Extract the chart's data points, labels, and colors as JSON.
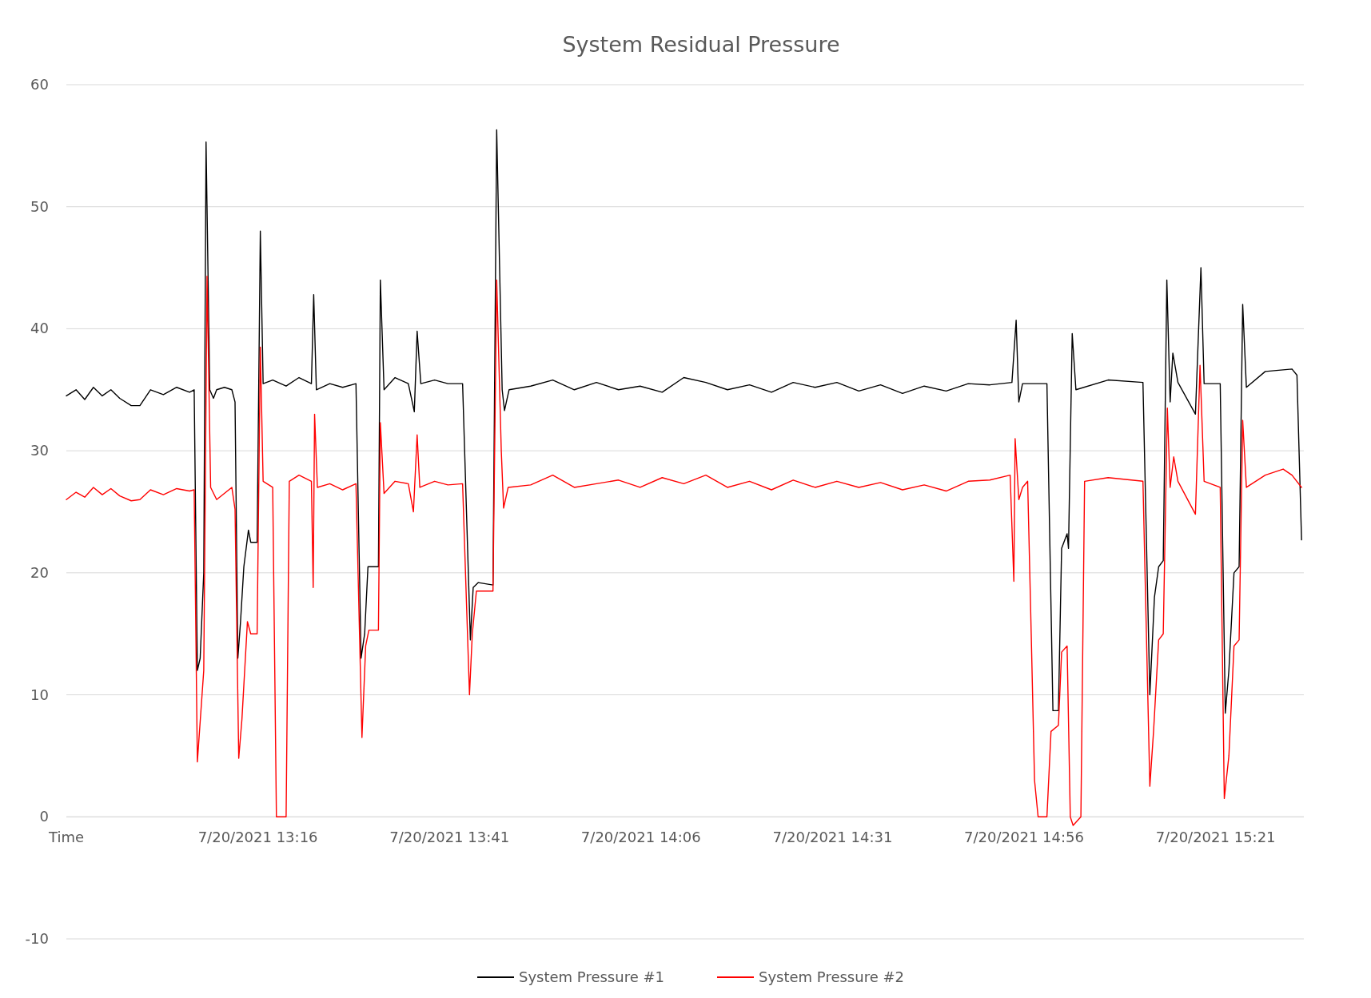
{
  "chart_data": {
    "type": "line",
    "title": "System Residual Pressure",
    "xlim": [
      "2021-07-20T12:51",
      "2021-07-20T15:32:31"
    ],
    "xticks": [
      {
        "value": "2021-07-20T12:51",
        "label": "Time"
      },
      {
        "value": "2021-07-20T13:16",
        "label": "7/20/2021 13:16"
      },
      {
        "value": "2021-07-20T13:41",
        "label": "7/20/2021 13:41"
      },
      {
        "value": "2021-07-20T14:06",
        "label": "7/20/2021 14:06"
      },
      {
        "value": "2021-07-20T14:31",
        "label": "7/20/2021 14:31"
      },
      {
        "value": "2021-07-20T14:56",
        "label": "7/20/2021 14:56"
      },
      {
        "value": "2021-07-20T15:21",
        "label": "7/20/2021 15:21"
      }
    ],
    "ylim": [
      -10,
      60
    ],
    "yticks": [
      -10,
      0,
      10,
      20,
      30,
      40,
      50,
      60
    ],
    "grid": "y",
    "legend": "bottom",
    "marker": "none",
    "line_style": "solid",
    "series": [
      {
        "name": "System Pressure #1",
        "color": "#000000",
        "x": [
          "2021-07-20T12:51:00",
          "2021-07-20T12:52:16",
          "2021-07-20T12:53:24",
          "2021-07-20T12:54:32",
          "2021-07-20T12:55:41",
          "2021-07-20T12:56:49",
          "2021-07-20T12:57:58",
          "2021-07-20T12:59:28",
          "2021-07-20T13:00:36",
          "2021-07-20T13:01:59",
          "2021-07-20T13:03:40",
          "2021-07-20T13:05:24",
          "2021-07-20T13:07:05",
          "2021-07-20T13:07:41",
          "2021-07-20T13:08:06",
          "2021-07-20T13:08:28",
          "2021-07-20T13:08:56",
          "2021-07-20T13:09:14",
          "2021-07-20T13:09:43",
          "2021-07-20T13:10:12",
          "2021-07-20T13:10:37",
          "2021-07-20T13:11:38",
          "2021-07-20T13:12:36",
          "2021-07-20T13:13:01",
          "2021-07-20T13:13:23",
          "2021-07-20T13:13:44",
          "2021-07-20T13:14:10",
          "2021-07-20T13:14:46",
          "2021-07-20T13:15:04",
          "2021-07-20T13:15:54",
          "2021-07-20T13:16:19",
          "2021-07-20T13:16:41",
          "2021-07-20T13:17:56",
          "2021-07-20T13:19:41",
          "2021-07-20T13:21:22",
          "2021-07-20T13:22:59",
          "2021-07-20T13:23:17",
          "2021-07-20T13:23:38",
          "2021-07-20T13:25:23",
          "2021-07-20T13:27:04",
          "2021-07-20T13:28:48",
          "2021-07-20T13:29:28",
          "2021-07-20T13:29:56",
          "2021-07-20T13:30:22",
          "2021-07-20T13:31:44",
          "2021-07-20T13:31:59",
          "2021-07-20T13:32:28",
          "2021-07-20T13:33:54",
          "2021-07-20T13:35:38",
          "2021-07-20T13:36:25",
          "2021-07-20T13:36:47",
          "2021-07-20T13:37:16",
          "2021-07-20T13:39:04",
          "2021-07-20T13:40:48",
          "2021-07-20T13:42:43",
          "2021-07-20T13:43:44",
          "2021-07-20T13:44:06",
          "2021-07-20T13:44:46",
          "2021-07-20T13:46:41",
          "2021-07-20T13:47:10",
          "2021-07-20T13:47:53",
          "2021-07-20T13:48:11",
          "2021-07-20T13:48:47",
          "2021-07-20T13:51:36",
          "2021-07-20T13:54:29",
          "2021-07-20T13:57:18",
          "2021-07-20T14:00:11",
          "2021-07-20T14:03:04",
          "2021-07-20T14:05:53",
          "2021-07-20T14:08:46",
          "2021-07-20T14:11:35",
          "2021-07-20T14:14:28",
          "2021-07-20T14:17:17",
          "2021-07-20T14:20:10",
          "2021-07-20T14:23:02",
          "2021-07-20T14:25:52",
          "2021-07-20T14:28:44",
          "2021-07-20T14:31:34",
          "2021-07-20T14:34:26",
          "2021-07-20T14:37:16",
          "2021-07-20T14:40:08",
          "2021-07-20T14:42:58",
          "2021-07-20T14:45:50",
          "2021-07-20T14:48:43",
          "2021-07-20T14:51:32",
          "2021-07-20T14:54:25",
          "2021-07-20T14:54:58",
          "2021-07-20T14:55:19",
          "2021-07-20T14:55:48",
          "2021-07-20T14:58:59",
          "2021-07-20T14:59:46",
          "2021-07-20T15:00:29",
          "2021-07-20T15:00:54",
          "2021-07-20T15:01:37",
          "2021-07-20T15:01:48",
          "2021-07-20T15:02:17",
          "2021-07-20T15:02:46",
          "2021-07-20T15:06:58",
          "2021-07-20T15:11:31",
          "2021-07-20T15:12:25",
          "2021-07-20T15:13:01",
          "2021-07-20T15:13:34",
          "2021-07-20T15:14:10",
          "2021-07-20T15:14:38",
          "2021-07-20T15:15:04",
          "2021-07-20T15:15:25",
          "2021-07-20T15:16:05",
          "2021-07-20T15:18:22",
          "2021-07-20T15:19:05",
          "2021-07-20T15:19:30",
          "2021-07-20T15:21:36",
          "2021-07-20T15:22:16",
          "2021-07-20T15:22:44",
          "2021-07-20T15:23:24",
          "2021-07-20T15:24:04",
          "2021-07-20T15:24:32",
          "2021-07-20T15:25:01",
          "2021-07-20T15:27:29",
          "2021-07-20T15:30:58",
          "2021-07-20T15:31:37",
          "2021-07-20T15:32:13"
        ],
        "values": [
          34.5,
          35,
          34.2,
          35.2,
          34.5,
          35,
          34.3,
          33.7,
          33.7,
          35,
          34.6,
          35.2,
          34.8,
          35,
          12,
          13,
          20,
          55.3,
          35,
          34.3,
          35,
          35.2,
          35,
          34,
          13,
          16,
          20.5,
          23.5,
          22.5,
          22.5,
          48,
          35.5,
          35.8,
          35.3,
          36,
          35.5,
          42.8,
          35,
          35.5,
          35.2,
          35.5,
          13,
          15,
          20.5,
          20.5,
          44,
          35,
          36,
          35.5,
          33.2,
          39.8,
          35.5,
          35.8,
          35.5,
          35.5,
          14.5,
          18.8,
          19.2,
          19,
          56.3,
          35,
          33.3,
          35,
          35.3,
          35.8,
          35,
          35.6,
          35,
          35.3,
          34.8,
          36,
          35.6,
          35,
          35.4,
          34.8,
          35.6,
          35.2,
          35.6,
          34.9,
          35.4,
          34.7,
          35.3,
          34.9,
          35.5,
          35.4,
          35.6,
          40.7,
          34,
          35.5,
          35.5,
          8.7,
          8.7,
          22,
          23.2,
          22,
          39.6,
          35,
          35.8,
          35.6,
          10,
          18,
          20.5,
          21,
          44,
          34,
          38,
          35.6,
          33,
          45,
          35.5,
          35.5,
          8.5,
          12,
          20,
          20.5,
          42,
          35.2,
          36.5,
          36.7,
          36.2,
          22.7
        ]
      },
      {
        "name": "System Pressure #2",
        "color": "#ff0000",
        "x": [
          "2021-07-20T12:51:00",
          "2021-07-20T12:52:16",
          "2021-07-20T12:53:24",
          "2021-07-20T12:54:32",
          "2021-07-20T12:55:41",
          "2021-07-20T12:56:49",
          "2021-07-20T12:57:58",
          "2021-07-20T12:59:28",
          "2021-07-20T13:00:36",
          "2021-07-20T13:01:59",
          "2021-07-20T13:03:40",
          "2021-07-20T13:05:24",
          "2021-07-20T13:07:05",
          "2021-07-20T13:07:41",
          "2021-07-20T13:08:06",
          "2021-07-20T13:08:56",
          "2021-07-20T13:09:22",
          "2021-07-20T13:09:50",
          "2021-07-20T13:10:37",
          "2021-07-20T13:12:36",
          "2021-07-20T13:13:01",
          "2021-07-20T13:13:30",
          "2021-07-20T13:13:55",
          "2021-07-20T13:14:38",
          "2021-07-20T13:15:04",
          "2021-07-20T13:15:54",
          "2021-07-20T13:16:19",
          "2021-07-20T13:16:41",
          "2021-07-20T13:17:56",
          "2021-07-20T13:18:25",
          "2021-07-20T13:19:41",
          "2021-07-20T13:20:06",
          "2021-07-20T13:21:22",
          "2021-07-20T13:22:59",
          "2021-07-20T13:23:13",
          "2021-07-20T13:23:24",
          "2021-07-20T13:23:46",
          "2021-07-20T13:25:23",
          "2021-07-20T13:27:04",
          "2021-07-20T13:28:48",
          "2021-07-20T13:29:35",
          "2021-07-20T13:30:04",
          "2021-07-20T13:30:29",
          "2021-07-20T13:31:44",
          "2021-07-20T13:31:59",
          "2021-07-20T13:32:28",
          "2021-07-20T13:33:54",
          "2021-07-20T13:35:38",
          "2021-07-20T13:36:18",
          "2021-07-20T13:36:47",
          "2021-07-20T13:37:08",
          "2021-07-20T13:39:04",
          "2021-07-20T13:40:48",
          "2021-07-20T13:42:43",
          "2021-07-20T13:43:37",
          "2021-07-20T13:43:59",
          "2021-07-20T13:44:31",
          "2021-07-20T13:46:41",
          "2021-07-20T13:47:10",
          "2021-07-20T13:47:46",
          "2021-07-20T13:48:04",
          "2021-07-20T13:48:40",
          "2021-07-20T13:51:36",
          "2021-07-20T13:54:29",
          "2021-07-20T13:57:18",
          "2021-07-20T14:00:11",
          "2021-07-20T14:03:04",
          "2021-07-20T14:05:53",
          "2021-07-20T14:08:46",
          "2021-07-20T14:11:35",
          "2021-07-20T14:14:28",
          "2021-07-20T14:17:17",
          "2021-07-20T14:20:10",
          "2021-07-20T14:23:02",
          "2021-07-20T14:25:52",
          "2021-07-20T14:28:44",
          "2021-07-20T14:31:34",
          "2021-07-20T14:34:26",
          "2021-07-20T14:37:16",
          "2021-07-20T14:40:08",
          "2021-07-20T14:42:58",
          "2021-07-20T14:45:50",
          "2021-07-20T14:48:43",
          "2021-07-20T14:51:32",
          "2021-07-20T14:54:11",
          "2021-07-20T14:54:40",
          "2021-07-20T14:54:50",
          "2021-07-20T14:55:19",
          "2021-07-20T14:55:48",
          "2021-07-20T14:56:28",
          "2021-07-20T14:56:56",
          "2021-07-20T14:57:22",
          "2021-07-20T14:57:50",
          "2021-07-20T14:58:59",
          "2021-07-20T14:59:31",
          "2021-07-20T15:00:29",
          "2021-07-20T15:00:54",
          "2021-07-20T15:01:37",
          "2021-07-20T15:02:02",
          "2021-07-20T15:02:24",
          "2021-07-20T15:03:25",
          "2021-07-20T15:03:54",
          "2021-07-20T15:06:58",
          "2021-07-20T15:11:31",
          "2021-07-20T15:12:25",
          "2021-07-20T15:12:54",
          "2021-07-20T15:13:34",
          "2021-07-20T15:14:10",
          "2021-07-20T15:14:42",
          "2021-07-20T15:15:04",
          "2021-07-20T15:15:32",
          "2021-07-20T15:16:05",
          "2021-07-20T15:18:22",
          "2021-07-20T15:18:58",
          "2021-07-20T15:19:30",
          "2021-07-20T15:21:36",
          "2021-07-20T15:22:08",
          "2021-07-20T15:22:44",
          "2021-07-20T15:23:24",
          "2021-07-20T15:24:04",
          "2021-07-20T15:24:32",
          "2021-07-20T15:25:01",
          "2021-07-20T15:27:29",
          "2021-07-20T15:29:49",
          "2021-07-20T15:30:58",
          "2021-07-20T15:32:13"
        ],
        "values": [
          26,
          26.6,
          26.2,
          27,
          26.4,
          26.9,
          26.3,
          25.9,
          26,
          26.8,
          26.4,
          26.9,
          26.7,
          26.8,
          4.5,
          12,
          44.3,
          27,
          26,
          27,
          25.2,
          4.8,
          8,
          16,
          15,
          15,
          38.5,
          27.5,
          27,
          0,
          0,
          27.5,
          28,
          27.5,
          18.8,
          33,
          27,
          27.3,
          26.8,
          27.3,
          6.5,
          14,
          15.3,
          15.3,
          32.3,
          26.5,
          27.5,
          27.3,
          25,
          31.3,
          27,
          27.5,
          27.2,
          27.3,
          10,
          15,
          18.5,
          18.5,
          44,
          30,
          25.3,
          27,
          27.2,
          28,
          27,
          27.3,
          27.6,
          27,
          27.8,
          27.3,
          28,
          27,
          27.5,
          26.8,
          27.6,
          27,
          27.5,
          27,
          27.4,
          26.8,
          27.2,
          26.7,
          27.5,
          27.6,
          28,
          19.3,
          31,
          26,
          27,
          27.5,
          15,
          3,
          0,
          0,
          7,
          7.5,
          13.5,
          14,
          0,
          -0.7,
          0,
          27.5,
          27.8,
          27.5,
          2.5,
          7,
          14.5,
          15,
          33.5,
          27,
          29.5,
          27.5,
          24.8,
          37,
          27.5,
          27,
          1.5,
          5,
          14,
          14.5,
          32.5,
          27,
          28,
          28.5,
          28,
          27
        ]
      }
    ]
  }
}
